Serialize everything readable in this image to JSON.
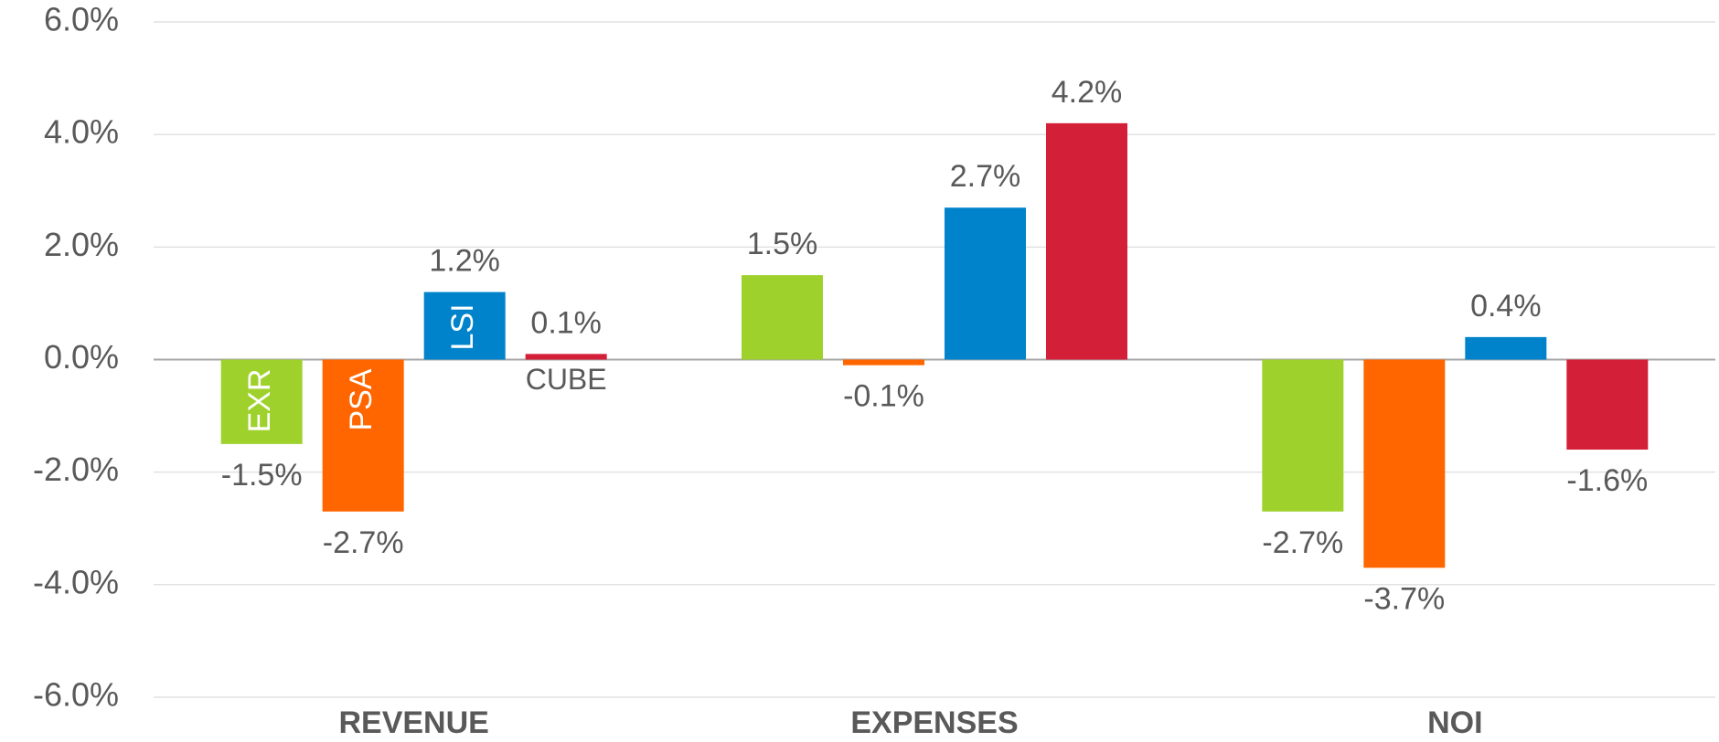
{
  "chart_data": {
    "type": "bar",
    "categories": [
      "REVENUE",
      "EXPENSES",
      "NOI"
    ],
    "series": [
      {
        "name": "EXR",
        "color": "#9fd12c",
        "values": [
          -1.5,
          1.5,
          -2.7
        ],
        "value_labels": [
          "-1.5%",
          "1.5%",
          "-2.7%"
        ]
      },
      {
        "name": "PSA",
        "color": "#ff6600",
        "values": [
          -2.7,
          -0.1,
          -3.7
        ],
        "value_labels": [
          "-2.7%",
          "-0.1%",
          "-3.7%"
        ]
      },
      {
        "name": "LSI",
        "color": "#0083ca",
        "values": [
          1.2,
          2.7,
          0.4
        ],
        "value_labels": [
          "1.2%",
          "2.7%",
          "0.4%"
        ]
      },
      {
        "name": "CUBE",
        "color": "#d41f38",
        "values": [
          0.1,
          4.2,
          -1.6
        ],
        "value_labels": [
          "0.1%",
          "4.2%",
          "-1.6%"
        ]
      }
    ],
    "ylim": [
      -6,
      6
    ],
    "yticks": [
      {
        "value": -6,
        "label": "-6.0%"
      },
      {
        "value": -4,
        "label": "-4.0%"
      },
      {
        "value": -2,
        "label": "-2.0%"
      },
      {
        "value": 0,
        "label": "0.0%"
      },
      {
        "value": 2,
        "label": "2.0%"
      },
      {
        "value": 4,
        "label": "4.0%"
      },
      {
        "value": 6,
        "label": "6.0%"
      }
    ],
    "grid": true
  }
}
